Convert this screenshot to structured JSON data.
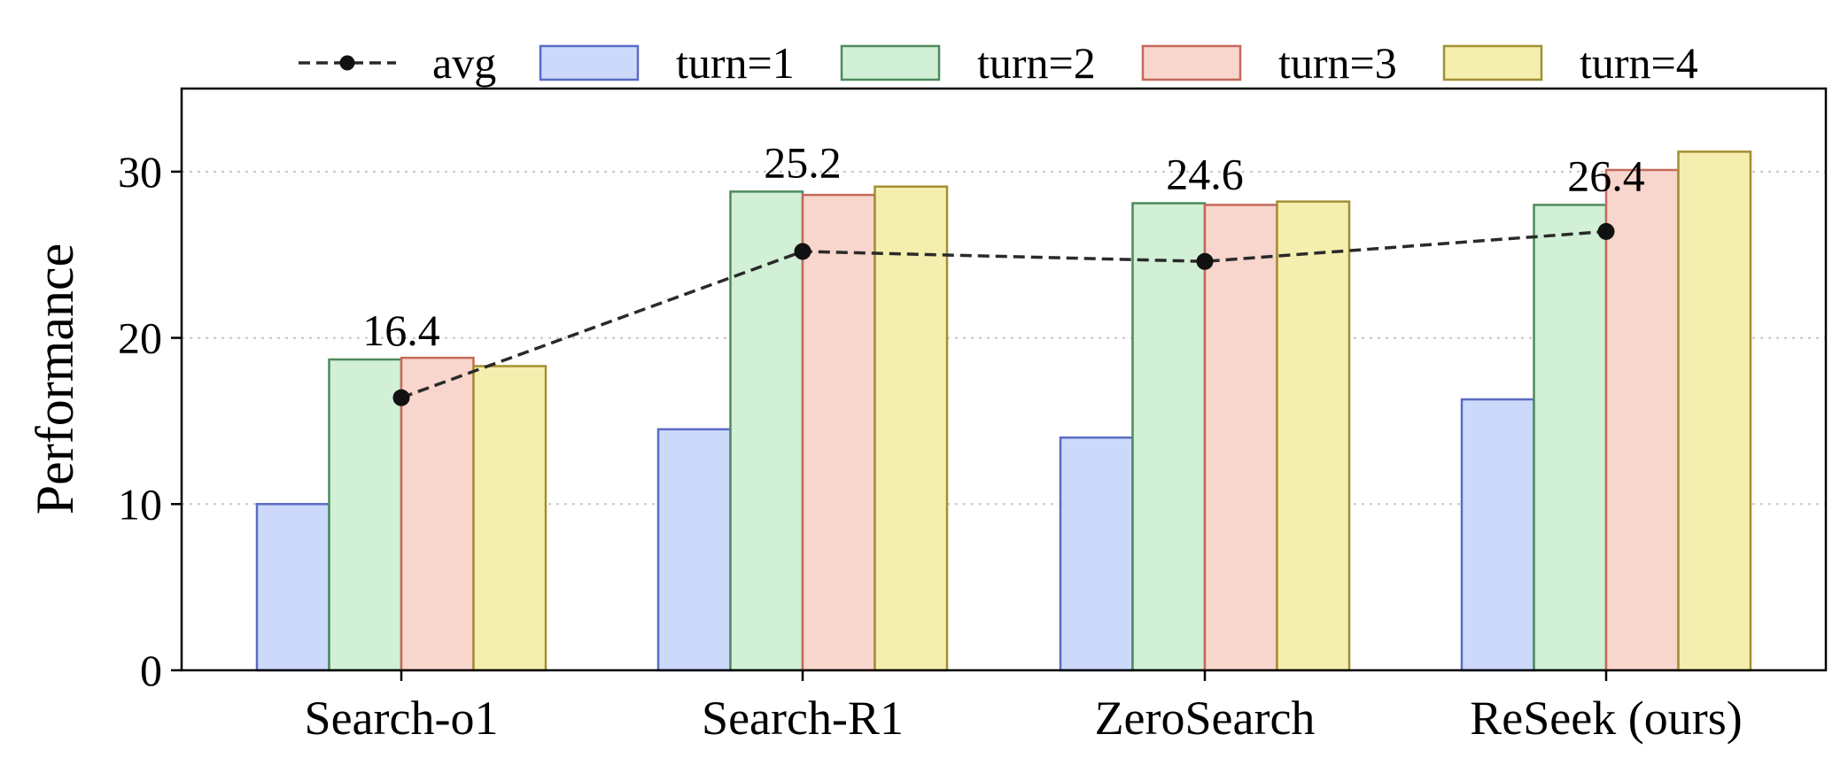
{
  "chart_data": {
    "type": "bar",
    "ylabel": "Performance",
    "xlabel": "",
    "ylim": [
      0,
      35
    ],
    "yticks": [
      0,
      10,
      20,
      30
    ],
    "grid": "horizontal-dotted",
    "legend_position": "top",
    "categories": [
      "Search-o1",
      "Search-R1",
      "ZeroSearch",
      "ReSeek (ours)"
    ],
    "series": [
      {
        "name": "turn=1",
        "values": [
          10.0,
          14.5,
          14.0,
          16.3
        ],
        "fill": "#cdd9fb",
        "stroke": "#5a6cc4"
      },
      {
        "name": "turn=2",
        "values": [
          18.7,
          28.8,
          28.1,
          28.0
        ],
        "fill": "#d1f0d6",
        "stroke": "#4e8a5c"
      },
      {
        "name": "turn=3",
        "values": [
          18.8,
          28.6,
          28.0,
          30.1
        ],
        "fill": "#f8d5cd",
        "stroke": "#c4695a"
      },
      {
        "name": "turn=4",
        "values": [
          18.3,
          29.1,
          28.2,
          31.2
        ],
        "fill": "#f5efaf",
        "stroke": "#a38f32"
      }
    ],
    "line": {
      "name": "avg",
      "values": [
        16.4,
        25.2,
        24.6,
        26.4
      ],
      "labels": [
        "16.4",
        "25.2",
        "24.6",
        "26.4"
      ],
      "color": "#2a2a2a",
      "style": "dashed"
    }
  }
}
